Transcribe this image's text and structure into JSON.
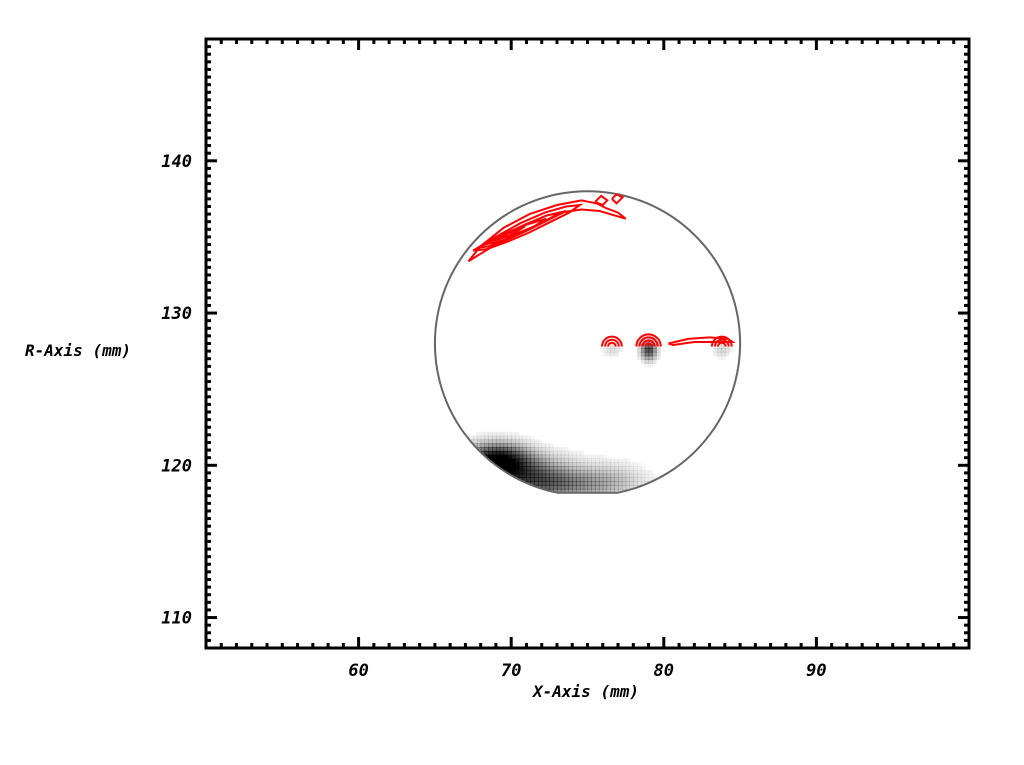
{
  "chart_data": {
    "type": "heatmap",
    "title": "",
    "xlabel": "X-Axis (mm)",
    "ylabel": "R-Axis (mm)",
    "xlim": [
      50,
      100
    ],
    "ylim": [
      108,
      148
    ],
    "xticks": [
      60,
      70,
      80,
      90
    ],
    "yticks": [
      110,
      120,
      130,
      140
    ],
    "x_minor_step": 1,
    "y_minor_step": 0.5,
    "grid": false,
    "colors": {
      "outline": "#666666",
      "contour": "#ff0000",
      "heat": "#000000",
      "frame": "#000000"
    },
    "boundary": {
      "shape": "circle-flat-top-bottom",
      "center": [
        75,
        128
      ],
      "radius": 10.0,
      "flat_y_top": 138.0,
      "flat_y_bottom": 118.2
    },
    "heat_blobs": [
      {
        "x": 69.0,
        "y": 120.3,
        "sx": 1.4,
        "sy": 0.75,
        "intensity": 1.0
      },
      {
        "x": 71.0,
        "y": 119.3,
        "sx": 2.2,
        "sy": 0.9,
        "intensity": 0.55
      },
      {
        "x": 73.5,
        "y": 118.7,
        "sx": 2.5,
        "sy": 0.6,
        "intensity": 0.3
      },
      {
        "x": 76.5,
        "y": 119.1,
        "sx": 1.6,
        "sy": 0.8,
        "intensity": 0.15
      },
      {
        "x": 79.0,
        "y": 127.6,
        "sx": 0.35,
        "sy": 0.45,
        "intensity": 0.7
      },
      {
        "x": 76.6,
        "y": 127.6,
        "sx": 0.4,
        "sy": 0.35,
        "intensity": 0.12
      },
      {
        "x": 83.8,
        "y": 127.6,
        "sx": 0.4,
        "sy": 0.35,
        "intensity": 0.15
      }
    ],
    "contours": [
      {
        "points": [
          [
            67.2,
            133.4
          ],
          [
            68.0,
            134.4
          ],
          [
            69.5,
            135.6
          ],
          [
            71.2,
            136.5
          ],
          [
            73.0,
            137.1
          ],
          [
            74.6,
            137.4
          ],
          [
            75.6,
            137.2
          ],
          [
            76.2,
            136.9
          ],
          [
            77.0,
            136.6
          ],
          [
            77.5,
            136.2
          ],
          [
            76.8,
            136.4
          ],
          [
            75.8,
            136.7
          ],
          [
            74.6,
            136.8
          ],
          [
            73.2,
            136.6
          ],
          [
            71.8,
            135.8
          ],
          [
            70.3,
            135.2
          ],
          [
            69.0,
            134.5
          ],
          [
            68.0,
            133.9
          ],
          [
            67.2,
            133.4
          ]
        ]
      },
      {
        "points": [
          [
            67.5,
            134.1
          ],
          [
            69.0,
            135.0
          ],
          [
            70.6,
            135.9
          ],
          [
            72.2,
            136.6
          ],
          [
            73.6,
            137.0
          ],
          [
            74.5,
            137.1
          ],
          [
            73.8,
            136.6
          ],
          [
            72.6,
            136.0
          ],
          [
            71.2,
            135.3
          ],
          [
            69.8,
            134.7
          ],
          [
            68.4,
            134.2
          ],
          [
            67.5,
            134.1
          ]
        ]
      },
      {
        "points": [
          [
            67.9,
            134.3
          ],
          [
            69.4,
            135.1
          ],
          [
            70.9,
            135.8
          ],
          [
            72.3,
            136.4
          ],
          [
            73.6,
            136.7
          ],
          [
            72.4,
            136.1
          ],
          [
            71.0,
            135.4
          ],
          [
            69.7,
            134.8
          ],
          [
            68.6,
            134.4
          ],
          [
            67.9,
            134.3
          ]
        ]
      },
      {
        "points": [
          [
            68.2,
            134.5
          ],
          [
            69.6,
            135.2
          ],
          [
            71.0,
            135.8
          ],
          [
            72.3,
            136.2
          ],
          [
            71.2,
            135.5
          ],
          [
            69.9,
            134.9
          ],
          [
            68.8,
            134.6
          ],
          [
            68.2,
            134.5
          ]
        ]
      },
      {
        "points": [
          [
            68.6,
            134.7
          ],
          [
            69.8,
            135.3
          ],
          [
            70.9,
            135.7
          ],
          [
            70.0,
            135.1
          ],
          [
            69.0,
            134.8
          ],
          [
            68.6,
            134.7
          ]
        ]
      },
      {
        "points": [
          [
            69.1,
            134.9
          ],
          [
            70.0,
            135.4
          ],
          [
            70.6,
            135.6
          ],
          [
            69.9,
            135.1
          ],
          [
            69.1,
            134.9
          ]
        ]
      },
      {
        "points": [
          [
            69.4,
            135.0
          ],
          [
            70.1,
            135.4
          ],
          [
            69.9,
            135.0
          ],
          [
            69.4,
            135.0
          ]
        ]
      },
      {
        "points": [
          [
            75.5,
            137.3
          ],
          [
            75.9,
            137.7
          ],
          [
            76.3,
            137.4
          ],
          [
            76.0,
            137.1
          ],
          [
            75.5,
            137.3
          ]
        ]
      },
      {
        "points": [
          [
            76.6,
            137.5
          ],
          [
            76.9,
            137.8
          ],
          [
            77.3,
            137.6
          ],
          [
            76.9,
            137.2
          ],
          [
            76.6,
            137.5
          ]
        ]
      },
      {
        "points": [
          [
            80.3,
            128.0
          ],
          [
            81.6,
            128.3
          ],
          [
            83.0,
            128.4
          ],
          [
            84.2,
            128.3
          ],
          [
            84.5,
            128.1
          ],
          [
            83.4,
            128.1
          ],
          [
            82.0,
            128.1
          ],
          [
            80.6,
            127.9
          ],
          [
            80.3,
            128.0
          ]
        ]
      }
    ],
    "contour_arcs": [
      {
        "x": 76.6,
        "y": 127.8,
        "radii": [
          0.25,
          0.45,
          0.65
        ]
      },
      {
        "x": 79.0,
        "y": 127.8,
        "radii": [
          0.2,
          0.4,
          0.6,
          0.8
        ]
      },
      {
        "x": 83.8,
        "y": 127.8,
        "radii": [
          0.25,
          0.45,
          0.65
        ]
      }
    ]
  }
}
